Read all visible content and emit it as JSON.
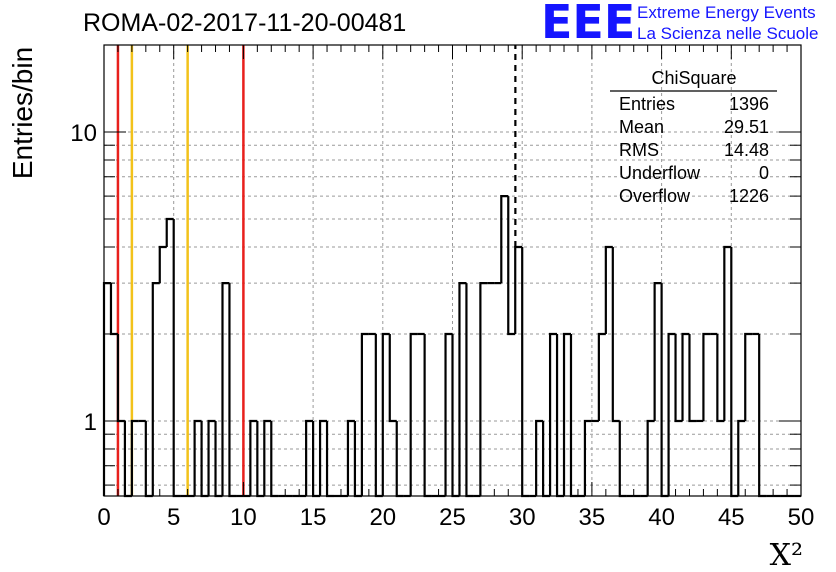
{
  "header": {
    "title": "ROMA-02-2017-11-20-00481",
    "logo_text": "EEE",
    "logo_line1": "Extreme Energy Events",
    "logo_line2": "La Scienza nelle Scuole"
  },
  "stats_box": {
    "title": "ChiSquare",
    "rows": [
      {
        "label": "Entries",
        "value": "1396"
      },
      {
        "label": "Mean",
        "value": "29.51"
      },
      {
        "label": "RMS",
        "value": "14.48"
      },
      {
        "label": "Underflow",
        "value": "0"
      },
      {
        "label": "Overflow",
        "value": "1226"
      }
    ]
  },
  "colors": {
    "histogram": "#000000",
    "red_lines": "#e8201c",
    "yellow_lines": "#f2c21a",
    "grid": "#9a9a9a",
    "logo": "#1515ff"
  },
  "chart_data": {
    "type": "bar",
    "style": "step-histogram",
    "xlabel": "X²",
    "ylabel": "Entries/bin",
    "xlim": [
      0,
      50
    ],
    "ylim": [
      0.55,
      20
    ],
    "ylog": true,
    "bin_width": 0.5,
    "grid": true,
    "x_ticks": [
      0,
      5,
      10,
      15,
      20,
      25,
      30,
      35,
      40,
      45,
      50
    ],
    "y_tick_labels": [
      {
        "value": 1,
        "label": "1"
      },
      {
        "value": 10,
        "label": "10"
      }
    ],
    "values": [
      3,
      2,
      1,
      0,
      1,
      1,
      0,
      3,
      4,
      5,
      0,
      0,
      0,
      1,
      0,
      1,
      0,
      3,
      0,
      0,
      0,
      1,
      0,
      1,
      0,
      0,
      0,
      0,
      0,
      1,
      0,
      1,
      0,
      0,
      0,
      1,
      0,
      2,
      2,
      0,
      2,
      1,
      0,
      0,
      2,
      2,
      0,
      0,
      0,
      2,
      0,
      3,
      0,
      0,
      3,
      3,
      3,
      6,
      2,
      4,
      0,
      0,
      1,
      0,
      2,
      0,
      2,
      0,
      0,
      1,
      1,
      2,
      4,
      1,
      0,
      0,
      0,
      0,
      1,
      3,
      0,
      2,
      1,
      2,
      1,
      1,
      2,
      2,
      1,
      4,
      0,
      1,
      2,
      2,
      0,
      0,
      0,
      0,
      0,
      0
    ],
    "vertical_lines": [
      {
        "x": 1,
        "color": "red",
        "style": "solid"
      },
      {
        "x": 2,
        "color": "yellow",
        "style": "solid"
      },
      {
        "x": 6,
        "color": "yellow",
        "style": "solid"
      },
      {
        "x": 10,
        "color": "red",
        "style": "solid"
      },
      {
        "x": 29.51,
        "color": "black",
        "style": "dashed"
      }
    ]
  }
}
